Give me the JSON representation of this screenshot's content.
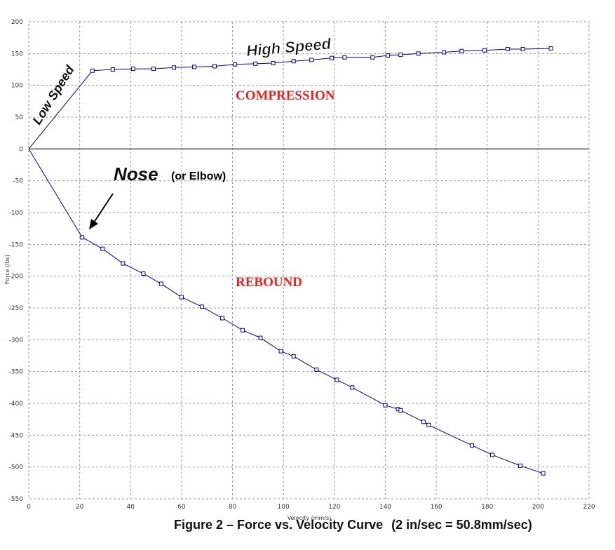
{
  "chart_data": {
    "type": "line",
    "xlabel": "Velocity (mm/s)",
    "ylabel": "Force (lbs)",
    "xlim": [
      0,
      220
    ],
    "ylim": [
      -550,
      200
    ],
    "x_ticks": [
      0,
      20,
      40,
      60,
      80,
      100,
      120,
      140,
      160,
      180,
      200,
      220
    ],
    "y_ticks": [
      200,
      150,
      100,
      50,
      0,
      -50,
      -100,
      -150,
      -200,
      -250,
      -300,
      -350,
      -400,
      -450,
      -500,
      -550
    ],
    "grid": true,
    "line_color": "#0000a8",
    "series": [
      {
        "values_x": [
          0,
          25,
          33,
          41,
          49,
          57,
          65,
          73,
          81,
          89,
          96,
          104,
          111,
          119,
          124,
          135,
          141,
          146,
          153,
          163,
          170,
          179,
          188,
          194,
          205
        ],
        "values_y": [
          0,
          123,
          125,
          126,
          126,
          128,
          129,
          130,
          133,
          134,
          135,
          138,
          140,
          143,
          144,
          144,
          147,
          148,
          150,
          152,
          154,
          155,
          157,
          157,
          158
        ]
      },
      {
        "values_x": [
          0,
          21,
          29,
          37,
          45,
          52,
          60,
          68,
          76,
          84,
          91,
          99,
          104,
          113,
          121,
          127,
          140,
          145,
          146,
          155,
          157,
          174,
          182,
          193,
          202
        ],
        "values_y": [
          0,
          -139,
          -157,
          -180,
          -196,
          -212,
          -233,
          -248,
          -266,
          -285,
          -297,
          -318,
          -326,
          -347,
          -363,
          -375,
          -403,
          -409,
          -411,
          -429,
          -434,
          -466,
          -481,
          -498,
          -510
        ]
      }
    ],
    "annotations": {
      "high_speed": "High Speed",
      "low_speed": "Low Speed",
      "compression": "COMPRESSION",
      "nose": "Nose",
      "elbow": "(or Elbow)",
      "rebound": "REBOUND"
    },
    "caption": "Figure 2 – Force vs. Velocity Curve",
    "caption_note": "(2 in/sec = 50.8mm/sec)"
  }
}
